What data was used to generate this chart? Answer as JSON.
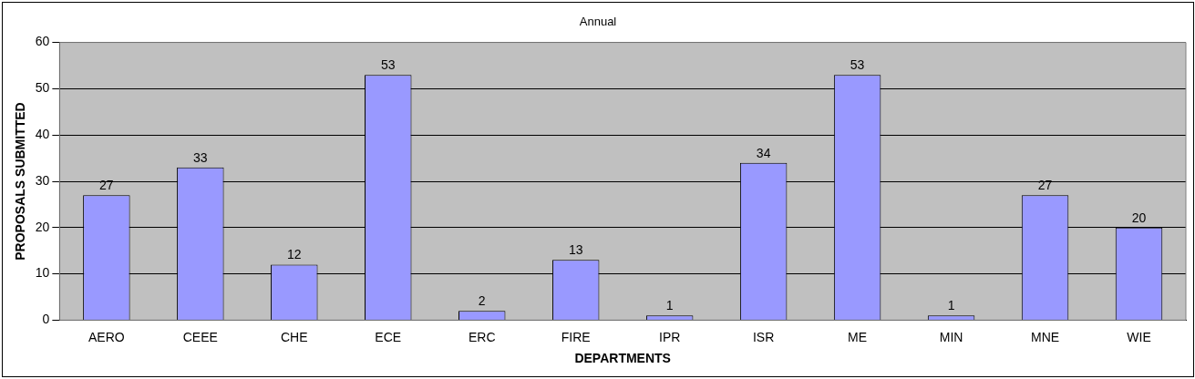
{
  "chart_data": {
    "type": "bar",
    "title": "Annual",
    "xlabel": "DEPARTMENTS",
    "ylabel": "PROPOSALS SUBMITTED",
    "categories": [
      "AERO",
      "CEEE",
      "CHE",
      "ECE",
      "ERC",
      "FIRE",
      "IPR",
      "ISR",
      "ME",
      "MIN",
      "MNE",
      "WIE"
    ],
    "values": [
      27,
      33,
      12,
      53,
      2,
      13,
      1,
      34,
      53,
      1,
      27,
      20
    ],
    "color": "#9999ff",
    "ylim": [
      0,
      60
    ],
    "yticks": [
      0,
      10,
      20,
      30,
      40,
      50,
      60
    ],
    "grid": "y",
    "data_labels": true,
    "legend": false
  }
}
